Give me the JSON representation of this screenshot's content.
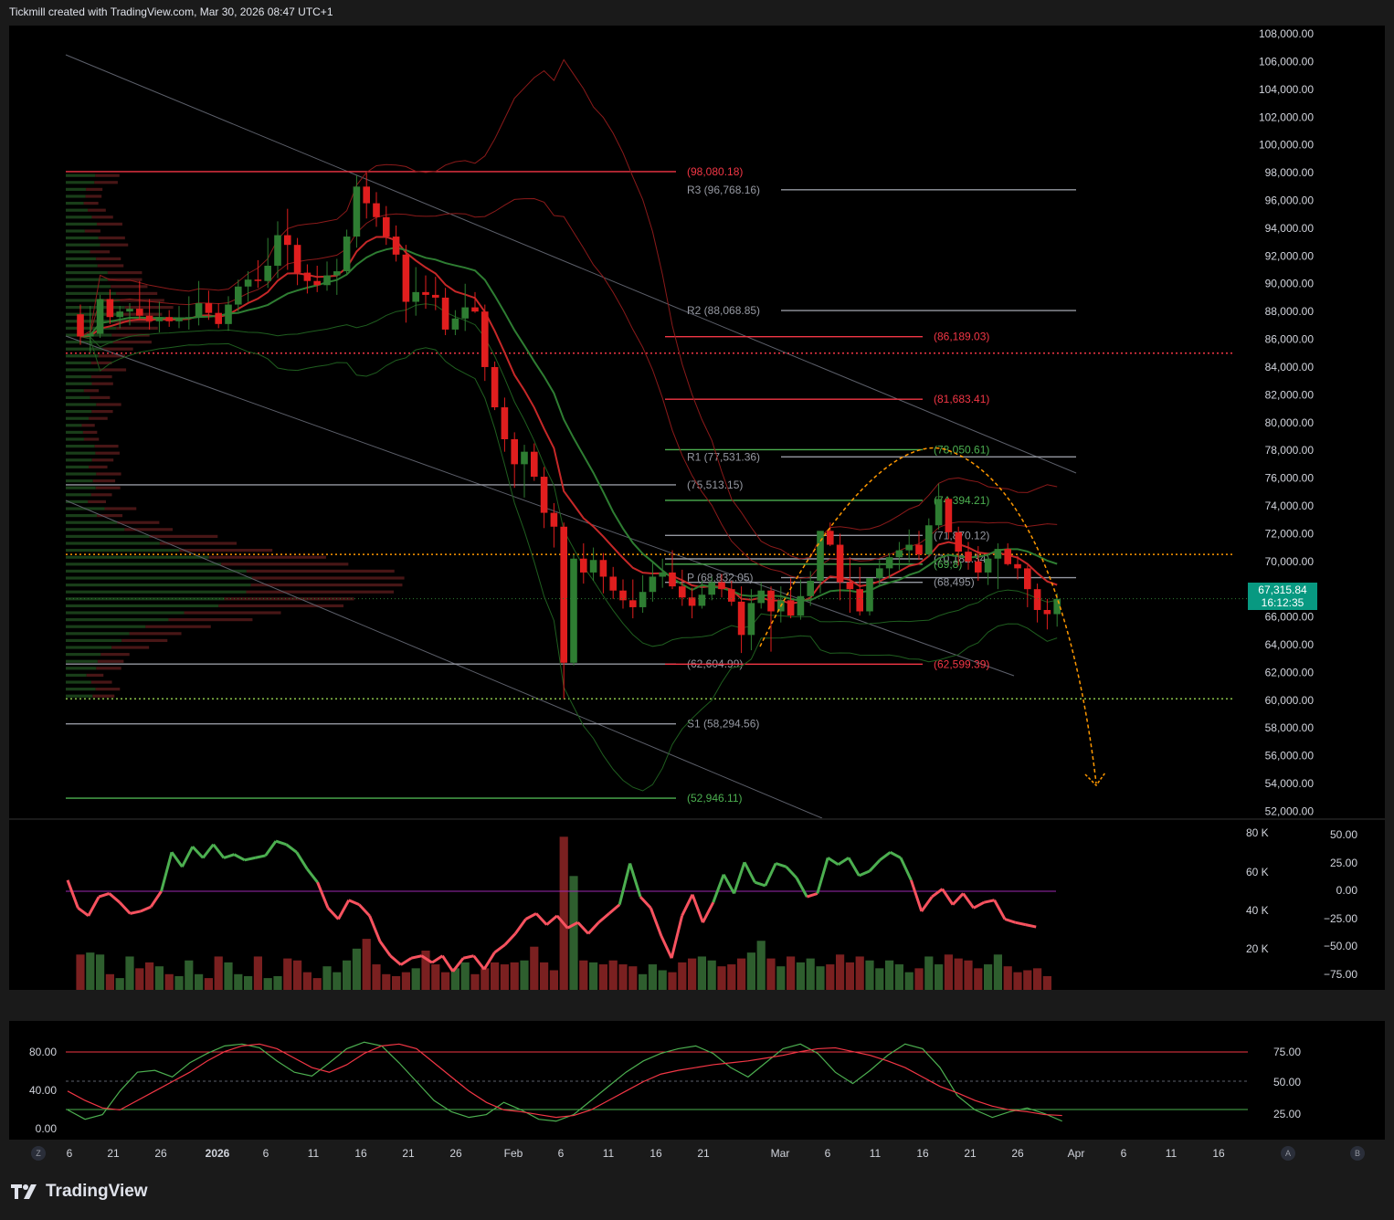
{
  "header": {
    "text": "Tickmill created with TradingView.com, Mar 30, 2026 08:47 UTC+1"
  },
  "footer": {
    "brand": "TradingView"
  },
  "corner_buttons": {
    "left": "Z",
    "right_a": "A",
    "right_b": "B"
  },
  "last_price": {
    "price": "67,315.84",
    "countdown": "16:12:35"
  },
  "colors": {
    "up": "#2e7d32",
    "down": "#d32f2f",
    "level_red": "#f23645",
    "level_green": "#4caf50",
    "level_gray": "#9598a1",
    "orange": "#ff9800",
    "rsi_up": "#4caf50",
    "rsi_down": "#f7525f",
    "price_tag": "#089981"
  },
  "chart_data": [
    {
      "type": "candlestick",
      "title": "",
      "ylim": [
        51500,
        108600
      ],
      "y_ticks": [
        "108,000.00",
        "106,000.00",
        "104,000.00",
        "102,000.00",
        "100,000.00",
        "98,000.00",
        "96,000.00",
        "94,000.00",
        "92,000.00",
        "90,000.00",
        "88,000.00",
        "86,000.00",
        "84,000.00",
        "82,000.00",
        "80,000.00",
        "78,000.00",
        "76,000.00",
        "74,000.00",
        "72,000.00",
        "70,000.00",
        "68,000.00",
        "66,000.00",
        "64,000.00",
        "62,000.00",
        "60,000.00",
        "58,000.00",
        "56,000.00",
        "54,000.00",
        "52,000.00"
      ],
      "x_ticks": [
        "6",
        "21",
        "26",
        "2026",
        "6",
        "11",
        "16",
        "21",
        "26",
        "Feb",
        "6",
        "11",
        "16",
        "21",
        "Mar",
        "6",
        "11",
        "16",
        "21",
        "26",
        "Apr",
        "6",
        "11",
        "16"
      ],
      "horizontal_levels": [
        {
          "label": "(98,080.18)",
          "value": 98080.18,
          "color": "red"
        },
        {
          "label": "R3 (96,768.16)",
          "value": 96768.16,
          "color": "gray"
        },
        {
          "label": "R2 (88,068.85)",
          "value": 88068.85,
          "color": "gray"
        },
        {
          "label": "(86,189.03)",
          "value": 86189.03,
          "color": "red"
        },
        {
          "label": "(81,683.41)",
          "value": 81683.41,
          "color": "red"
        },
        {
          "label": "(78,050.61)",
          "value": 78050.61,
          "color": "green"
        },
        {
          "label": "R1 (77,531.36)",
          "value": 77531.36,
          "color": "gray"
        },
        {
          "label": "(75,513.15)",
          "value": 75513.15,
          "color": "gray"
        },
        {
          "label": "(74,394.21)",
          "value": 74394.21,
          "color": "green"
        },
        {
          "label": "(71,870.12)",
          "value": 71870.12,
          "color": "gray"
        },
        {
          "label": "(70,182.34)",
          "value": 70182.34,
          "color": "gray"
        },
        {
          "label": "(69,8)",
          "value": 69800,
          "color": "green"
        },
        {
          "label": "P (68,832.05)",
          "value": 68832.05,
          "color": "gray"
        },
        {
          "label": "(68,495)",
          "value": 68495,
          "color": "gray"
        },
        {
          "label": "(62,604.99)",
          "value": 62604.99,
          "color": "gray"
        },
        {
          "label": "(62,599.39)",
          "value": 62599.39,
          "color": "red"
        },
        {
          "label": "S1 (58,294.56)",
          "value": 58294.56,
          "color": "gray"
        },
        {
          "label": "(52,946.11)",
          "value": 52946.11,
          "color": "green"
        }
      ],
      "dotted_levels": [
        85000,
        70500,
        60100
      ],
      "candles_ohlc": [
        [
          87800,
          88500,
          85600,
          86200
        ],
        [
          86200,
          88400,
          85000,
          86400
        ],
        [
          86400,
          89200,
          86100,
          88900
        ],
        [
          88900,
          89600,
          87100,
          87600
        ],
        [
          87600,
          88400,
          86800,
          88000
        ],
        [
          88000,
          88600,
          87000,
          88200
        ],
        [
          88200,
          90200,
          87400,
          87700
        ],
        [
          87700,
          88900,
          86700,
          87300
        ],
        [
          87300,
          88700,
          86500,
          87600
        ],
        [
          87600,
          88100,
          86900,
          87300
        ],
        [
          87300,
          88400,
          86800,
          87500
        ],
        [
          87500,
          89100,
          86700,
          87600
        ],
        [
          87600,
          90200,
          87000,
          88600
        ],
        [
          88600,
          89500,
          87400,
          87900
        ],
        [
          87900,
          88600,
          86800,
          87100
        ],
        [
          87100,
          89100,
          86600,
          88500
        ],
        [
          88500,
          90300,
          88000,
          89800
        ],
        [
          89800,
          90900,
          88700,
          90300
        ],
        [
          90300,
          91700,
          89700,
          90200
        ],
        [
          90200,
          93300,
          89700,
          91300
        ],
        [
          91300,
          94500,
          90400,
          93500
        ],
        [
          93500,
          95400,
          91000,
          92800
        ],
        [
          92800,
          93300,
          89900,
          90800
        ],
        [
          90800,
          91400,
          89300,
          90200
        ],
        [
          90200,
          91300,
          89400,
          89900
        ],
        [
          89900,
          91600,
          89500,
          90600
        ],
        [
          90600,
          91800,
          89200,
          90900
        ],
        [
          90900,
          93900,
          90600,
          93400
        ],
        [
          93400,
          97800,
          92600,
          97000
        ],
        [
          97000,
          98000,
          94700,
          95800
        ],
        [
          95800,
          96600,
          94100,
          94800
        ],
        [
          94800,
          95600,
          92800,
          93400
        ],
        [
          93400,
          94200,
          91600,
          92100
        ],
        [
          92100,
          92800,
          87200,
          88700
        ],
        [
          88700,
          91200,
          87700,
          89400
        ],
        [
          89400,
          90600,
          88200,
          89200
        ],
        [
          89200,
          90500,
          88100,
          89000
        ],
        [
          89000,
          89700,
          86300,
          86700
        ],
        [
          86700,
          88100,
          86300,
          87500
        ],
        [
          87500,
          90000,
          86600,
          88300
        ],
        [
          88300,
          89400,
          87900,
          88000
        ],
        [
          88000,
          88500,
          83000,
          84000
        ],
        [
          84000,
          84400,
          80900,
          81100
        ],
        [
          81100,
          81800,
          77900,
          78800
        ],
        [
          78800,
          79300,
          75300,
          77000
        ],
        [
          77000,
          78400,
          74600,
          77900
        ],
        [
          77900,
          78500,
          75800,
          76100
        ],
        [
          76100,
          76800,
          72400,
          73500
        ],
        [
          73500,
          74200,
          71000,
          72500
        ],
        [
          72500,
          72800,
          60100,
          62700
        ],
        [
          62700,
          70500,
          62500,
          70200
        ],
        [
          70200,
          71300,
          68400,
          69200
        ],
        [
          69200,
          71000,
          68600,
          70100
        ],
        [
          70100,
          70600,
          67700,
          68900
        ],
        [
          68900,
          69600,
          67300,
          67900
        ],
        [
          67900,
          68700,
          66600,
          67200
        ],
        [
          67200,
          68700,
          65900,
          66700
        ],
        [
          66700,
          69000,
          66300,
          67800
        ],
        [
          67800,
          69900,
          67100,
          68900
        ],
        [
          68900,
          70200,
          68100,
          69200
        ],
        [
          69200,
          70800,
          68000,
          68200
        ],
        [
          68200,
          69400,
          66800,
          67400
        ],
        [
          67400,
          68100,
          65900,
          66800
        ],
        [
          66800,
          68600,
          66600,
          67600
        ],
        [
          67600,
          68900,
          67200,
          68500
        ],
        [
          68500,
          69100,
          67400,
          68000
        ],
        [
          68000,
          68600,
          66800,
          67100
        ],
        [
          67100,
          68200,
          63400,
          64700
        ],
        [
          64700,
          68000,
          63600,
          67000
        ],
        [
          67000,
          68500,
          66600,
          67900
        ],
        [
          67900,
          68200,
          63500,
          66400
        ],
        [
          66400,
          68200,
          65600,
          67200
        ],
        [
          67200,
          68800,
          65900,
          66100
        ],
        [
          66100,
          68700,
          65800,
          67500
        ],
        [
          67500,
          69300,
          66800,
          68600
        ],
        [
          68600,
          71300,
          67700,
          72200
        ],
        [
          72200,
          72800,
          71100,
          71200
        ],
        [
          71200,
          72000,
          67200,
          68500
        ],
        [
          68500,
          70300,
          66300,
          68000
        ],
        [
          68000,
          69600,
          66100,
          66400
        ],
        [
          66400,
          68800,
          66100,
          68800
        ],
        [
          68800,
          70100,
          68300,
          69500
        ],
        [
          69500,
          70600,
          68800,
          70300
        ],
        [
          70300,
          71400,
          69400,
          70800
        ],
        [
          70800,
          72300,
          69900,
          71200
        ],
        [
          71200,
          72200,
          70100,
          70500
        ],
        [
          70500,
          73100,
          70300,
          72600
        ],
        [
          72600,
          75600,
          72300,
          74500
        ],
        [
          74500,
          74600,
          71600,
          72100
        ],
        [
          72100,
          72500,
          69700,
          70700
        ],
        [
          70700,
          71400,
          69400,
          70000
        ],
        [
          70000,
          71100,
          68600,
          69200
        ],
        [
          69200,
          70500,
          68300,
          70200
        ],
        [
          70200,
          71300,
          68000,
          70900
        ],
        [
          70900,
          71300,
          69700,
          69800
        ],
        [
          69800,
          70400,
          68700,
          69500
        ],
        [
          69500,
          69700,
          66700,
          68000
        ],
        [
          68000,
          68400,
          65600,
          66500
        ],
        [
          66500,
          67300,
          65100,
          66200
        ],
        [
          66200,
          67700,
          65300,
          67300
        ]
      ],
      "overlays": [
        "EMA (red)",
        "EMA (green)",
        "Bollinger bands (red)",
        "Bollinger bands (green)",
        "Volume profile",
        "Descending trend channel",
        "Projected path (orange dashed)"
      ]
    },
    {
      "type": "bar",
      "title": "",
      "y_ticks_left": [
        "80 K",
        "60 K",
        "40 K",
        "20 K"
      ],
      "y_ticks_right": [
        "50.00",
        "25.00",
        "0.00",
        "−25.00",
        "−50.00",
        "−75.00"
      ],
      "volume": [
        18,
        19,
        18,
        8,
        6,
        17,
        11,
        14,
        12,
        8,
        7,
        15,
        8,
        6,
        17,
        14,
        8,
        7,
        17,
        6,
        7,
        16,
        15,
        9,
        6,
        12,
        9,
        15,
        21,
        26,
        13,
        8,
        7,
        9,
        11,
        20,
        13,
        9,
        11,
        14,
        8,
        11,
        14,
        13,
        14,
        15,
        22,
        14,
        10,
        78,
        58,
        15,
        14,
        13,
        15,
        13,
        12,
        8,
        13,
        10,
        9,
        14,
        16,
        17,
        15,
        12,
        13,
        16,
        19,
        25,
        16,
        12,
        17,
        14,
        16,
        12,
        13,
        18,
        14,
        17,
        15,
        11,
        15,
        13,
        9,
        11,
        17,
        13,
        18,
        16,
        15,
        11,
        13,
        18,
        12,
        9,
        10,
        11,
        7
      ],
      "oscillator": [
        10,
        -15,
        -22,
        -5,
        -2,
        -10,
        -20,
        -18,
        -14,
        0,
        35,
        22,
        40,
        30,
        42,
        30,
        33,
        28,
        30,
        32,
        45,
        42,
        35,
        20,
        8,
        -15,
        -25,
        -8,
        -12,
        -22,
        -45,
        -58,
        -66,
        -60,
        -58,
        -64,
        -58,
        -72,
        -60,
        -58,
        -70,
        -55,
        -48,
        -38,
        -25,
        -20,
        -30,
        -22,
        -33,
        -28,
        -38,
        -28,
        -20,
        -12,
        25,
        -5,
        -15,
        -40,
        -60,
        -22,
        -3,
        -28,
        -10,
        15,
        -2,
        26,
        8,
        5,
        25,
        22,
        12,
        -5,
        -2,
        30,
        24,
        30,
        14,
        18,
        28,
        35,
        30,
        10,
        -18,
        -5,
        2,
        -12,
        -2,
        -15,
        -10,
        -8,
        -25,
        -28,
        -30,
        -32
      ]
    },
    {
      "type": "line",
      "title": "",
      "y_ticks_left": [
        "80.00",
        "40.00",
        "0.00"
      ],
      "y_ticks_right": [
        "75.00",
        "50.00",
        "25.00"
      ],
      "series": [
        {
          "values": [
            20,
            10,
            15,
            40,
            60,
            62,
            55,
            70,
            80,
            88,
            90,
            86,
            72,
            60,
            56,
            70,
            85,
            92,
            88,
            70,
            50,
            30,
            18,
            12,
            15,
            28,
            20,
            10,
            8,
            15,
            30,
            45,
            60,
            72,
            80,
            85,
            88,
            80,
            65,
            55,
            70,
            85,
            90,
            80,
            60,
            48,
            62,
            78,
            90,
            85,
            65,
            35,
            20,
            12,
            18,
            22,
            16,
            8
          ]
        },
        {
          "values": [
            40,
            30,
            22,
            20,
            30,
            40,
            50,
            60,
            72,
            82,
            88,
            90,
            85,
            75,
            65,
            60,
            68,
            80,
            88,
            90,
            85,
            70,
            55,
            40,
            28,
            20,
            18,
            15,
            12,
            14,
            20,
            30,
            40,
            50,
            58,
            62,
            65,
            68,
            70,
            72,
            75,
            78,
            82,
            85,
            86,
            82,
            78,
            72,
            65,
            55,
            45,
            38,
            30,
            24,
            20,
            18,
            15,
            14
          ]
        }
      ]
    }
  ]
}
